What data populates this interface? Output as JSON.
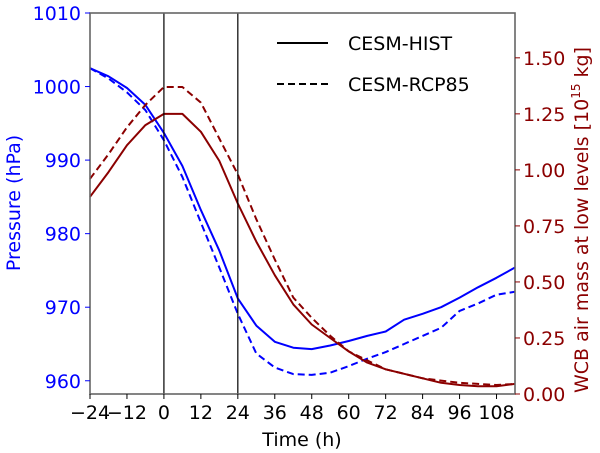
{
  "chart_data": {
    "type": "line",
    "title": "",
    "xlabel": "Time (h)",
    "ylabel_left": "Pressure (hPa)",
    "ylabel_right_main": "WCB air mass at low levels [10",
    "ylabel_right_sup": "15",
    "ylabel_right_end": " kg]",
    "xlim": [
      -24,
      114
    ],
    "ylim_left": [
      958.2,
      1010
    ],
    "ylim_right": [
      0.0,
      1.7
    ],
    "x_ticks": [
      "−24",
      "−12",
      "0",
      "12",
      "24",
      "36",
      "48",
      "60",
      "72",
      "84",
      "96",
      "108"
    ],
    "x_tick_values": [
      -24,
      -12,
      0,
      12,
      24,
      36,
      48,
      60,
      72,
      84,
      96,
      108
    ],
    "y_left_ticks": [
      "960",
      "970",
      "980",
      "990",
      "1000",
      "1010"
    ],
    "y_left_tick_values": [
      960,
      970,
      980,
      990,
      1000,
      1010
    ],
    "y_right_ticks": [
      "0.00",
      "0.25",
      "0.50",
      "0.75",
      "1.00",
      "1.25",
      "1.50"
    ],
    "y_right_tick_values": [
      0.0,
      0.25,
      0.5,
      0.75,
      1.0,
      1.25,
      1.5
    ],
    "vertical_lines": [
      0,
      24
    ],
    "grid": false,
    "legend_position": "top-right",
    "legend": [
      {
        "label": "CESM-HIST",
        "style": "solid"
      },
      {
        "label": "CESM-RCP85",
        "style": "dashed"
      }
    ],
    "colors": {
      "pressure": "#0000ff",
      "mass": "#8b0000",
      "frame": "#666666"
    },
    "x": [
      -24,
      -18,
      -12,
      -6,
      0,
      6,
      12,
      18,
      24,
      30,
      36,
      42,
      48,
      54,
      60,
      66,
      72,
      78,
      84,
      90,
      96,
      102,
      108,
      114
    ],
    "series": [
      {
        "name": "CESM-HIST pressure",
        "axis": "left",
        "style": "solid",
        "color": "#0000ff",
        "values": [
          1002.5,
          1001.4,
          999.8,
          997.5,
          993.7,
          989.2,
          983.2,
          977.7,
          971.2,
          967.5,
          965.3,
          964.5,
          964.3,
          964.8,
          965.4,
          966.1,
          966.7,
          968.3,
          969.1,
          970.0,
          971.3,
          972.7,
          974.0,
          975.4
        ]
      },
      {
        "name": "CESM-RCP85 pressure",
        "axis": "left",
        "style": "dashed",
        "color": "#0000ff",
        "values": [
          1002.5,
          1001.1,
          999.2,
          996.8,
          992.7,
          987.7,
          981.5,
          975.4,
          969.1,
          963.7,
          961.8,
          960.9,
          960.8,
          961.1,
          962.0,
          963.0,
          963.9,
          965.0,
          966.1,
          967.2,
          969.5,
          970.5,
          971.7,
          972.1
        ]
      },
      {
        "name": "CESM-HIST WCB mass",
        "axis": "right",
        "style": "solid",
        "color": "#8b0000",
        "values": [
          0.88,
          0.99,
          1.11,
          1.2,
          1.25,
          1.25,
          1.17,
          1.04,
          0.85,
          0.68,
          0.53,
          0.4,
          0.31,
          0.25,
          0.19,
          0.14,
          0.11,
          0.09,
          0.07,
          0.05,
          0.04,
          0.035,
          0.035,
          0.045
        ]
      },
      {
        "name": "CESM-RCP85 WCB mass",
        "axis": "right",
        "style": "dashed",
        "color": "#8b0000",
        "values": [
          0.96,
          1.07,
          1.19,
          1.29,
          1.37,
          1.37,
          1.3,
          1.14,
          0.98,
          0.78,
          0.6,
          0.43,
          0.34,
          0.26,
          0.19,
          0.15,
          0.11,
          0.09,
          0.07,
          0.06,
          0.05,
          0.045,
          0.04,
          0.045
        ]
      }
    ]
  }
}
